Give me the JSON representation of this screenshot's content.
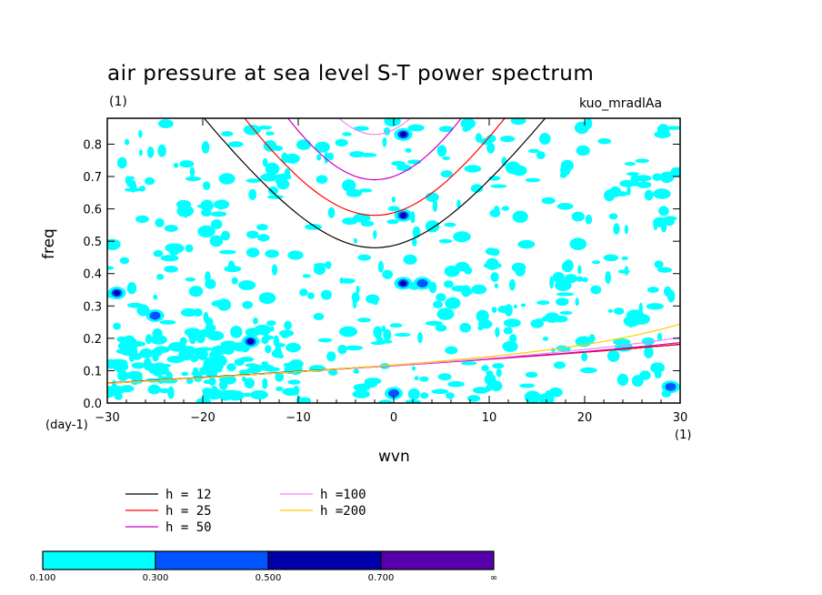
{
  "chart_data": {
    "type": "contour",
    "title": "air pressure at sea level S-T power spectrum",
    "subtitle": "(1)",
    "annotation": "kuo_mradlAa",
    "xlabel": "wvn",
    "x_unit": "(1)",
    "ylabel": "freq",
    "y_unit": "(day-1)",
    "xlim": [
      -30,
      30
    ],
    "ylim": [
      0,
      0.88
    ],
    "xticks": [
      "-30",
      "-20",
      "-10",
      "0",
      "10",
      "20",
      "30"
    ],
    "yticks": [
      "0.0",
      "0.1",
      "0.2",
      "0.3",
      "0.4",
      "0.5",
      "0.6",
      "0.7",
      "0.8"
    ],
    "legend": [
      {
        "label": "h = 12",
        "color": "#000000",
        "h": 12
      },
      {
        "label": "h = 25",
        "color": "#ff0000",
        "h": 25
      },
      {
        "label": "h = 50",
        "color": "#cc00cc",
        "h": 50
      },
      {
        "label": "h =100",
        "color": "#ee88ee",
        "h": 100
      },
      {
        "label": "h =200",
        "color": "#ffcc00",
        "h": 200
      }
    ],
    "colorbar": {
      "levels": [
        "0.100",
        "0.300",
        "0.500",
        "0.700",
        "∞"
      ],
      "colors": [
        "#00ffff",
        "#0055ff",
        "#0000aa",
        "#5500aa"
      ]
    },
    "dispersion_curves": [
      {
        "h": 12,
        "color": "#000000",
        "kind": "inertia-gravity",
        "min_freq": 0.48,
        "min_wvn": -2
      },
      {
        "h": 25,
        "color": "#ff0000",
        "kind": "inertia-gravity",
        "min_freq": 0.58,
        "min_wvn": -2
      },
      {
        "h": 50,
        "color": "#cc00cc",
        "kind": "inertia-gravity",
        "min_freq": 0.69,
        "min_wvn": -2
      },
      {
        "h": 100,
        "color": "#ee88ee",
        "kind": "inertia-gravity",
        "min_freq": 0.83,
        "min_wvn": -2
      },
      {
        "h": 12,
        "color": "#000000",
        "kind": "kelvin"
      },
      {
        "h": 25,
        "color": "#ff0000",
        "kind": "kelvin"
      },
      {
        "h": 50,
        "color": "#cc00cc",
        "kind": "kelvin"
      },
      {
        "h": 100,
        "color": "#ee88ee",
        "kind": "kelvin"
      },
      {
        "h": 200,
        "color": "#ffcc00",
        "kind": "kelvin"
      }
    ],
    "power_maxima": [
      {
        "wvn": -29,
        "freq": 0.34,
        "level": 0.5
      },
      {
        "wvn": 1,
        "freq": 0.37,
        "level": 0.5
      },
      {
        "wvn": 1,
        "freq": 0.58,
        "level": 0.5
      },
      {
        "wvn": 1,
        "freq": 0.83,
        "level": 0.5
      },
      {
        "wvn": -15,
        "freq": 0.19,
        "level": 0.5
      },
      {
        "wvn": -25,
        "freq": 0.27,
        "level": 0.3
      },
      {
        "wvn": 3,
        "freq": 0.37,
        "level": 0.3
      },
      {
        "wvn": 0,
        "freq": 0.03,
        "level": 0.3
      },
      {
        "wvn": 29,
        "freq": 0.05,
        "level": 0.3
      }
    ]
  }
}
